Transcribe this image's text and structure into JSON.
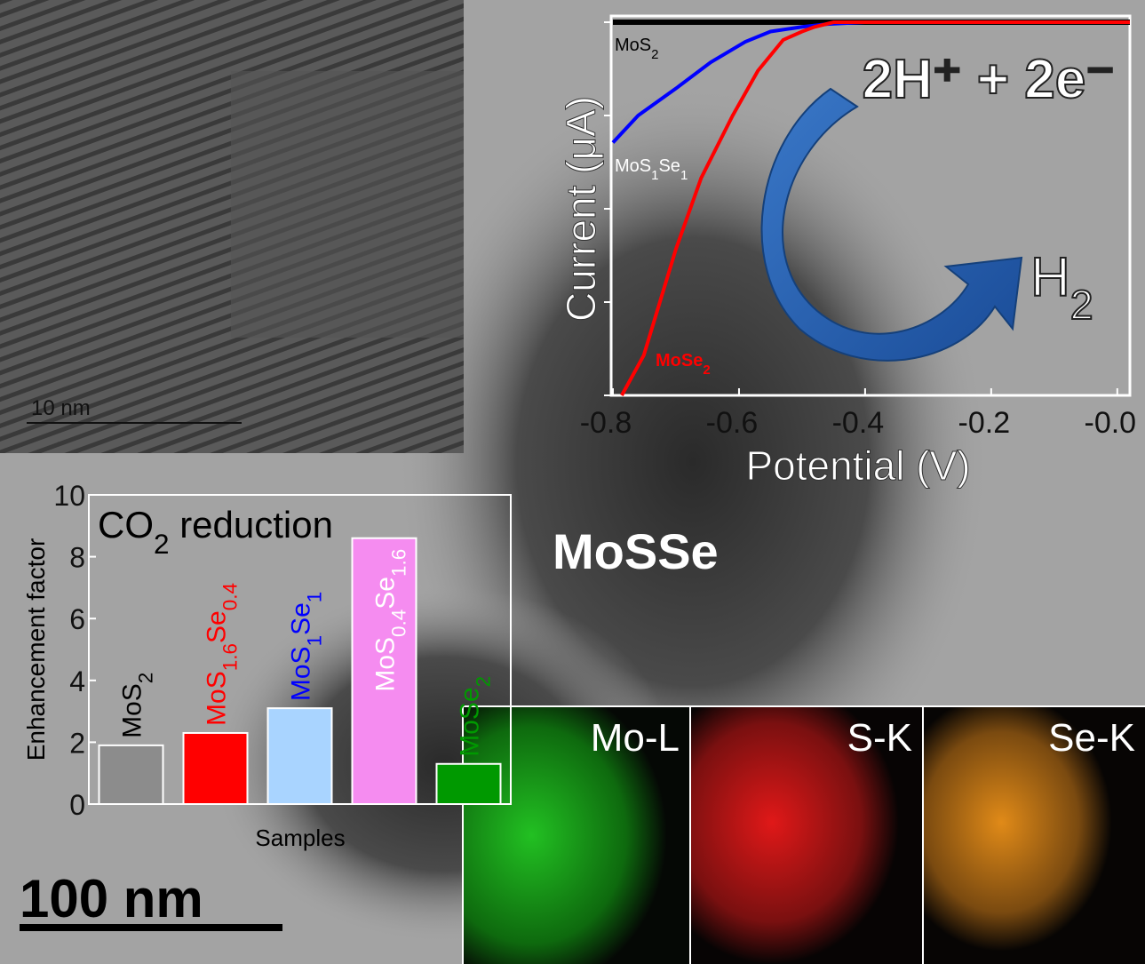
{
  "chart_data": [
    {
      "type": "line",
      "xlabel": "Potential (V)",
      "ylabel": "Current (μA)",
      "xlim": [
        -0.8,
        0.02
      ],
      "xticks": [
        -0.8,
        -0.6,
        -0.4,
        -0.2,
        {
          "value": 0,
          "label": "-0.0"
        }
      ],
      "ylim": [
        -4,
        0
      ],
      "yticks": [
        -4,
        -3,
        -2,
        -1,
        0
      ],
      "series": [
        {
          "name": "MoS2",
          "color": "#000000",
          "x": [
            -0.8,
            0.02
          ],
          "values": [
            0,
            0
          ]
        },
        {
          "name": "MoS1Se1",
          "color": "#0000ff",
          "x": [
            -0.8,
            -0.76,
            -0.7,
            -0.645,
            -0.59,
            -0.55,
            -0.5,
            -0.46,
            -0.4,
            0.02
          ],
          "values": [
            -1.29,
            -1.0,
            -0.71,
            -0.43,
            -0.21,
            -0.1,
            -0.05,
            -0.02,
            0,
            0
          ]
        },
        {
          "name": "MoSe2",
          "color": "#ff0000",
          "x": [
            -0.786,
            -0.751,
            -0.73,
            -0.7,
            -0.66,
            -0.61,
            -0.57,
            -0.53,
            -0.5,
            -0.48,
            -0.45,
            0.02
          ],
          "values": [
            -4.0,
            -3.57,
            -3.1,
            -2.43,
            -1.67,
            -1.0,
            -0.52,
            -0.19,
            -0.1,
            -0.05,
            0,
            0
          ]
        }
      ]
    },
    {
      "type": "bar",
      "title": "CO2 reduction",
      "xlabel": "Samples",
      "ylabel": "Enhancement factor",
      "categories": [
        "MoS2",
        "MoS1.6Se0.4",
        "MoS1Se1",
        "MoS0.4Se1.6",
        "MoSe2"
      ],
      "values": [
        1.9,
        2.3,
        3.1,
        8.6,
        1.3
      ],
      "colors": [
        "#8c8c8c",
        "#ff0000",
        "#a9d4ff",
        "#f58cf0",
        "#009900"
      ],
      "label_colors": [
        "#000000",
        "#ff0000",
        "#0000ff",
        "#ffffff",
        "#009900"
      ],
      "ylim": [
        0,
        10
      ],
      "yticks": [
        0,
        2,
        4,
        6,
        8,
        10
      ]
    }
  ],
  "reaction": {
    "reactants": "2H⁺ + 2e⁻",
    "product": "H2"
  },
  "material": "MoSSe",
  "hrtem_scale": "10 nm",
  "tem_scale": "100 nm",
  "eds_maps": [
    "Mo-L",
    "S-K",
    "Se-K"
  ]
}
